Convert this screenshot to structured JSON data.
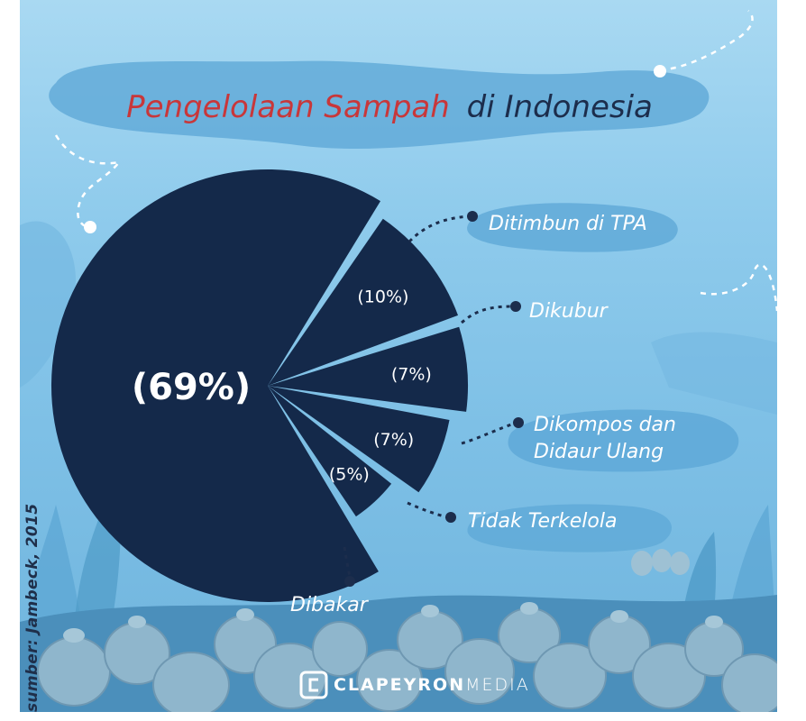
{
  "chart_data": {
    "type": "pie",
    "title_highlight": "Pengelolaan Sampah",
    "title_rest": "di Indonesia",
    "slices": [
      {
        "label": "Ditimbun di TPA",
        "value": 69,
        "value_label": "(69%)"
      },
      {
        "label": "Dikubur",
        "value": 10,
        "value_label": "(10%)"
      },
      {
        "label": "Dikompos dan Didaur Ulang",
        "value": 7,
        "value_label": "(7%)"
      },
      {
        "label": "Tidak Terkelola",
        "value": 7,
        "value_label": "(7%)"
      },
      {
        "label": "Dibakar",
        "value": 5,
        "value_label": "(5%)"
      }
    ]
  },
  "labels": {
    "line1_tpa": "Ditimbun di TPA",
    "line1_kubur": "Dikubur",
    "line1_kompos": "Dikompos dan",
    "line2_kompos": "Didaur Ulang",
    "line1_tidak": "Tidak Terkelola",
    "line1_bakar": "Dibakar"
  },
  "source": "sumber: Jambeck, 2015",
  "brand": {
    "name_bold": "CLAPEYRON",
    "name_light": "MEDIA"
  },
  "colors": {
    "pie": "#14294a",
    "title_highlight": "#c8373a",
    "title_rest": "#1c2d4c",
    "label_text": "#ffffff",
    "background": "#8fcbec"
  }
}
